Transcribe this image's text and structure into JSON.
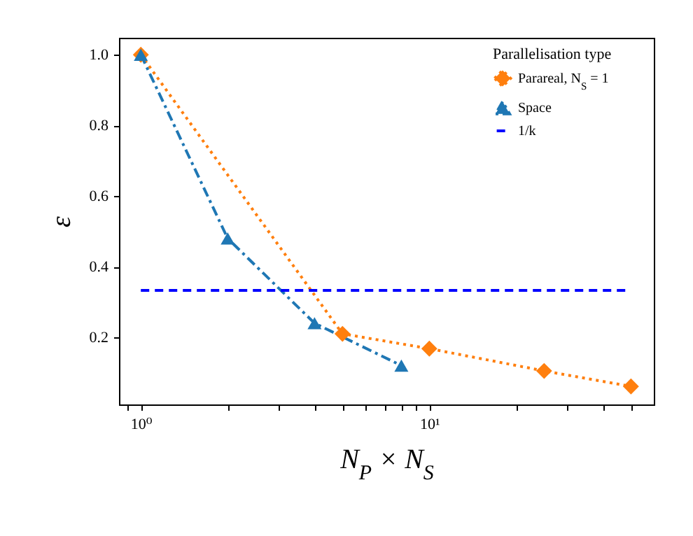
{
  "chart_data": {
    "type": "line",
    "xlabel": "N$_{P}$ × N$_{S}$",
    "ylabel": "ε",
    "legend_title": "Parallelisation type",
    "log": "x",
    "xlim": [
      0.84,
      60
    ],
    "ylim": [
      0.01,
      1.048
    ],
    "xticks": [
      {
        "value": 0.9,
        "label": null
      },
      {
        "value": 1,
        "label": "10⁰"
      },
      {
        "value": 2,
        "label": null
      },
      {
        "value": 3,
        "label": null
      },
      {
        "value": 4,
        "label": null
      },
      {
        "value": 5,
        "label": null
      },
      {
        "value": 6,
        "label": null
      },
      {
        "value": 7,
        "label": null
      },
      {
        "value": 8,
        "label": null
      },
      {
        "value": 9,
        "label": null
      },
      {
        "value": 10,
        "label": "10¹"
      },
      {
        "value": 20,
        "label": null
      },
      {
        "value": 30,
        "label": null
      },
      {
        "value": 40,
        "label": null
      },
      {
        "value": 50,
        "label": null
      }
    ],
    "yticks": [
      {
        "value": 0.2,
        "label": "0.2"
      },
      {
        "value": 0.4,
        "label": "0.4"
      },
      {
        "value": 0.6,
        "label": "0.6"
      },
      {
        "value": 0.8,
        "label": "0.8"
      },
      {
        "value": 1,
        "label": "1.0"
      }
    ],
    "legend": "top right",
    "grid": false,
    "series": [
      {
        "name": "Parareal, N$_{S}$ = 1",
        "color": "#ff7f0e",
        "marker": "diamond",
        "line_style": "dotted",
        "x": [
          1,
          5,
          10,
          25,
          50
        ],
        "values": [
          1.0,
          0.21,
          0.168,
          0.105,
          0.061
        ]
      },
      {
        "name": "Space",
        "color": "#1f77b4",
        "marker": "triangle",
        "line_style": "dashdot",
        "x": [
          1,
          2,
          4,
          8
        ],
        "values": [
          1.0,
          0.48,
          0.24,
          0.12
        ]
      },
      {
        "name": "1/k",
        "color": "#0000ff",
        "marker": "none",
        "line_style": "dashed",
        "x": [
          1,
          48
        ],
        "values": [
          0.333,
          0.333
        ]
      }
    ]
  }
}
